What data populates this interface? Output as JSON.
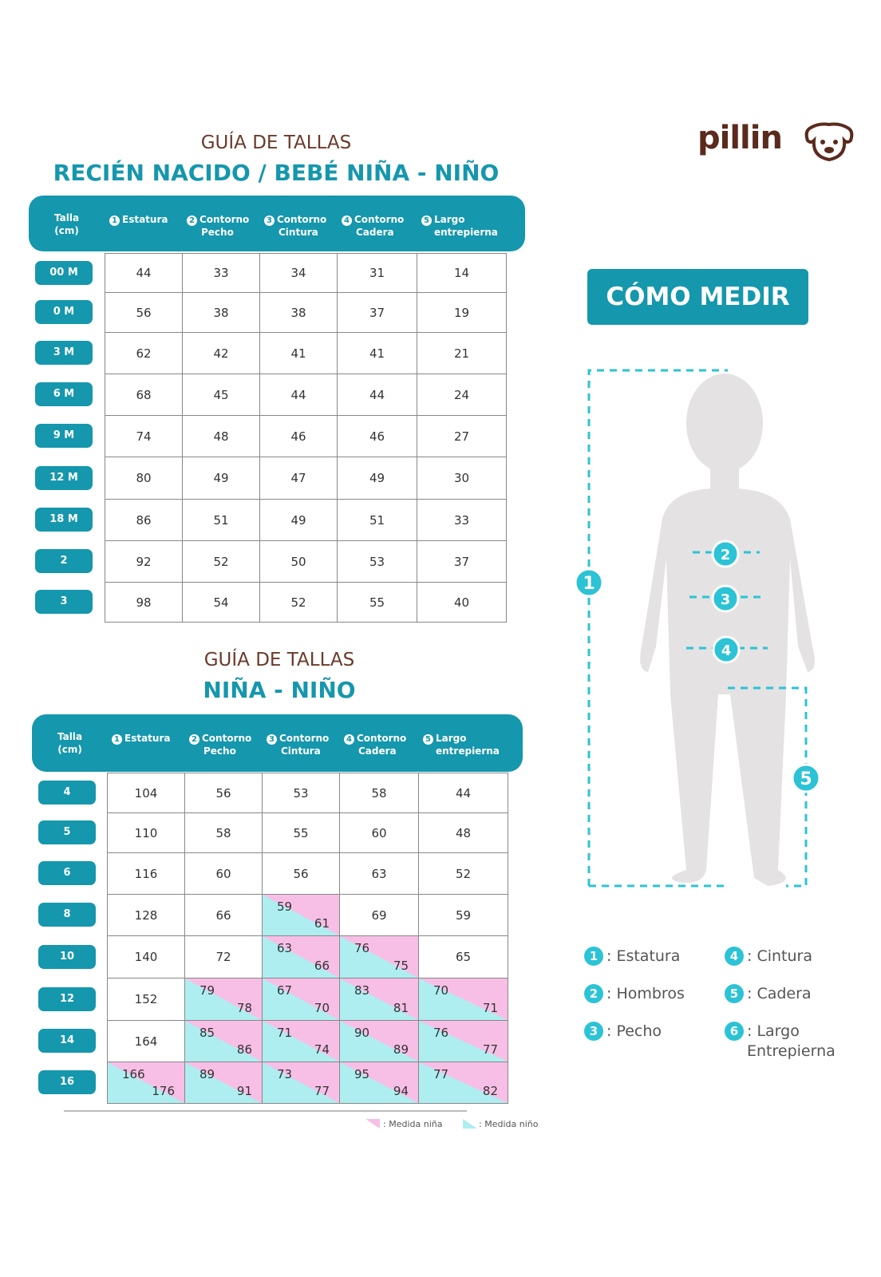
{
  "brand": {
    "name": "pillin",
    "mascot": "dog-face-logo",
    "color": "#5a2a1c"
  },
  "colors": {
    "accent": "#1597ad",
    "girl": "#f7bfe6",
    "boy": "#aeeef0"
  },
  "columns": [
    "Talla (cm)",
    "Estatura",
    "Contorno Pecho",
    "Contorno Cintura",
    "Contorno Cadera",
    "Largo entrepierna"
  ],
  "column_numbers": [
    "1",
    "2",
    "3",
    "4",
    "5"
  ],
  "table1": {
    "subtitle": "GUÍA DE TALLAS",
    "title": "RECIÉN NACIDO / BEBÉ NIÑA - NIÑO",
    "rows": [
      [
        "00 M",
        44,
        33,
        34,
        31,
        14
      ],
      [
        "0 M",
        56,
        38,
        38,
        37,
        19
      ],
      [
        "3 M",
        62,
        42,
        41,
        41,
        21
      ],
      [
        "6 M",
        68,
        45,
        44,
        44,
        24
      ],
      [
        "9 M",
        74,
        48,
        46,
        46,
        27
      ],
      [
        "12 M",
        80,
        49,
        47,
        49,
        30
      ],
      [
        "18 M",
        86,
        51,
        49,
        51,
        33
      ],
      [
        "2",
        92,
        52,
        50,
        53,
        37
      ],
      [
        "3",
        98,
        54,
        52,
        55,
        40
      ]
    ]
  },
  "table2": {
    "subtitle": "GUÍA DE TALLAS",
    "title": "NIÑA - NIÑO",
    "rows": [
      [
        "4",
        104,
        56,
        53,
        58,
        44
      ],
      [
        "5",
        110,
        58,
        55,
        60,
        48
      ],
      [
        "6",
        116,
        60,
        56,
        63,
        52
      ],
      [
        "8",
        128,
        66,
        [
          59,
          61
        ],
        69,
        59
      ],
      [
        "10",
        140,
        72,
        [
          63,
          66
        ],
        [
          76,
          75
        ],
        65
      ],
      [
        "12",
        152,
        [
          79,
          78
        ],
        [
          67,
          70
        ],
        [
          83,
          81
        ],
        [
          70,
          71
        ]
      ],
      [
        "14",
        164,
        [
          85,
          86
        ],
        [
          71,
          74
        ],
        [
          90,
          89
        ],
        [
          76,
          77
        ]
      ],
      [
        "16",
        [
          166,
          176
        ],
        [
          89,
          91
        ],
        [
          73,
          77
        ],
        [
          95,
          94
        ],
        [
          77,
          82
        ]
      ]
    ]
  },
  "legend_swatches": {
    "girl": ": Medida niña",
    "boy": ": Medida niño"
  },
  "how_to": {
    "button": "CÓMO MEDIR",
    "items": [
      {
        "n": "1",
        "label": ": Estatura"
      },
      {
        "n": "2",
        "label": ": Hombros"
      },
      {
        "n": "3",
        "label": ": Pecho"
      },
      {
        "n": "4",
        "label": ": Cintura"
      },
      {
        "n": "5",
        "label": ": Cadera"
      },
      {
        "n": "6",
        "label": ": Largo Entrepierna"
      }
    ]
  }
}
